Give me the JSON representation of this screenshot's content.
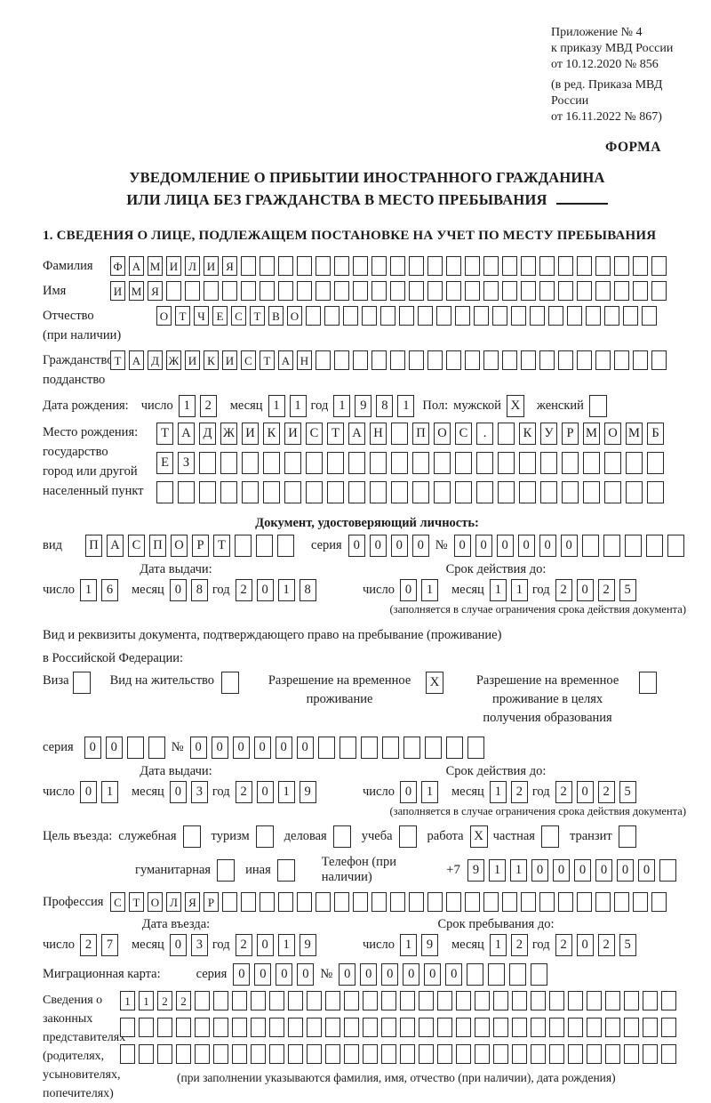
{
  "meta": {
    "appendix_lines": [
      "Приложение № 4",
      "к приказу МВД России",
      "от 10.12.2020 № 856"
    ],
    "revision_lines": [
      "(в ред. Приказа МВД России",
      "от 16.11.2022 № 867)"
    ],
    "form_label": "ФОРМА"
  },
  "title": {
    "line1": "УВЕДОМЛЕНИЕ О ПРИБЫТИИ ИНОСТРАННОГО ГРАЖДАНИНА",
    "line2": "ИЛИ ЛИЦА БЕЗ ГРАЖДАНСТВА В МЕСТО ПРЕБЫВАНИЯ"
  },
  "section1_heading": "1. СВЕДЕНИЯ О ЛИЦЕ, ПОДЛЕЖАЩЕМ ПОСТАНОВКЕ НА УЧЕТ ПО МЕСТУ ПРЕБЫВАНИЯ",
  "person": {
    "surname": {
      "label": "Фамилия",
      "cells": {
        "text": "ФАМИЛИЯ",
        "len": 30
      }
    },
    "given_name": {
      "label": "Имя",
      "cells": {
        "text": "ИМЯ",
        "len": 30
      }
    },
    "patronymic": {
      "label_line1": "Отчество",
      "label_line2": "(при наличии)",
      "cells": {
        "text": "ОТЧЕСТВО",
        "len": 27
      }
    },
    "citizenship": {
      "label_line1": "Гражданство,",
      "label_line2": "подданство",
      "cells": {
        "text": "ТАДЖИКИСТАН",
        "len": 30
      }
    },
    "birth_date": {
      "label": "Дата рождения:",
      "day_label": "число",
      "day": "12",
      "month_label": "месяц",
      "month": "11",
      "year_label": "год",
      "year": "1981"
    },
    "sex": {
      "label": "Пол:",
      "male_label": "мужской",
      "male": {
        "text": "X",
        "len": 1
      },
      "female_label": "женский",
      "female": {
        "text": "",
        "len": 1
      }
    },
    "birth_place": {
      "label_lines": [
        "Место рождения:",
        "государство",
        "город или другой",
        "населенный пункт"
      ],
      "row1": {
        "text": "ТАДЖИКИСТАН ПОС. КУРМОМБ",
        "len": 24
      },
      "row2": {
        "text": "ЕЗ",
        "len": 24
      },
      "row3": {
        "text": "",
        "len": 24
      }
    }
  },
  "identity_doc": {
    "heading": "Документ, удостоверяющий личность:",
    "type_label": "вид",
    "type_cells": {
      "text": "ПАСПОРТ",
      "len": 10
    },
    "series_label": "серия",
    "series_cells": {
      "text": "0000",
      "len": 4
    },
    "number_label": "№",
    "number_cells": {
      "text": "000000",
      "len": 11
    },
    "issue_heading": "Дата выдачи:",
    "issue": {
      "day_label": "число",
      "day": "16",
      "month_label": "месяц",
      "month": "08",
      "year_label": "год",
      "year": "2018"
    },
    "expiry_heading": "Срок действия до:",
    "expiry": {
      "day_label": "число",
      "day": "01",
      "month_label": "месяц",
      "month": "11",
      "year_label": "год",
      "year": "2025"
    },
    "note": "(заполняется в случае ограничения срока действия документа)"
  },
  "residence_doc": {
    "intro_line1": "Вид и реквизиты документа, подтверждающего право на пребывание (проживание)",
    "intro_line2": "в Российской Федерации:",
    "options": [
      {
        "label": "Виза",
        "check": {
          "text": "",
          "len": 1
        }
      },
      {
        "label": "Вид на жительство",
        "check": {
          "text": "",
          "len": 1
        }
      },
      {
        "label": "Разрешение на временное проживание",
        "check": {
          "text": "X",
          "len": 1
        }
      },
      {
        "label": "Разрешение на временное проживание в целях получения образования",
        "check": {
          "text": "",
          "len": 1
        }
      }
    ],
    "series_label": "серия",
    "series_cells": {
      "text": "00",
      "len": 4
    },
    "number_label": "№",
    "number_cells": {
      "text": "000000",
      "len": 14
    },
    "issue_heading": "Дата выдачи:",
    "issue": {
      "day_label": "число",
      "day": "01",
      "month_label": "месяц",
      "month": "03",
      "year_label": "год",
      "year": "2019"
    },
    "expiry_heading": "Срок действия до:",
    "expiry": {
      "day_label": "число",
      "day": "01",
      "month_label": "месяц",
      "month": "12",
      "year_label": "год",
      "year": "2025"
    },
    "note": "(заполняется в случае ограничения срока действия документа)"
  },
  "visit": {
    "purpose_label": "Цель въезда:",
    "purpose_row1": [
      {
        "label": "служебная",
        "check": {
          "text": "",
          "len": 1
        }
      },
      {
        "label": "туризм",
        "check": {
          "text": "",
          "len": 1
        }
      },
      {
        "label": "деловая",
        "check": {
          "text": "",
          "len": 1
        }
      },
      {
        "label": "учеба",
        "check": {
          "text": "",
          "len": 1
        }
      },
      {
        "label": "работа",
        "check": {
          "text": "X",
          "len": 1
        }
      },
      {
        "label": "частная",
        "check": {
          "text": "",
          "len": 1
        }
      },
      {
        "label": "транзит",
        "check": {
          "text": "",
          "len": 1
        }
      }
    ],
    "purpose_row2": [
      {
        "label": "гуманитарная",
        "check": {
          "text": "",
          "len": 1
        }
      },
      {
        "label": "иная",
        "check": {
          "text": "",
          "len": 1
        }
      }
    ],
    "phone_label": "Телефон (при наличии)",
    "phone_prefix": "+7",
    "phone_cells": {
      "text": "911000000",
      "len": 10
    },
    "profession_label": "Профессия",
    "profession_cells": {
      "text": "СТОЛЯР",
      "len": 30
    },
    "entry_heading": "Дата въезда:",
    "entry": {
      "day_label": "число",
      "day": "27",
      "month_label": "месяц",
      "month": "03",
      "year_label": "год",
      "year": "2019"
    },
    "stay_heading": "Срок пребывания до:",
    "stay": {
      "day_label": "число",
      "day": "19",
      "month_label": "месяц",
      "month": "12",
      "year_label": "год",
      "year": "2025"
    }
  },
  "migration_card": {
    "label": "Миграционная карта:",
    "series_label": "серия",
    "series_cells": {
      "text": "0000",
      "len": 4
    },
    "number_label": "№",
    "number_cells": {
      "text": "000000",
      "len": 10
    }
  },
  "representatives": {
    "label_lines": [
      "Сведения о",
      "законных",
      "представителях",
      "(родителях,",
      "усыновителях,",
      "попечителях)"
    ],
    "row1": {
      "text": "1122",
      "len": 30
    },
    "row2": {
      "text": "",
      "len": 30
    },
    "row3": {
      "text": "",
      "len": 30
    },
    "note": "(при заполнении указываются фамилия, имя, отчество (при наличии), дата рождения)"
  }
}
